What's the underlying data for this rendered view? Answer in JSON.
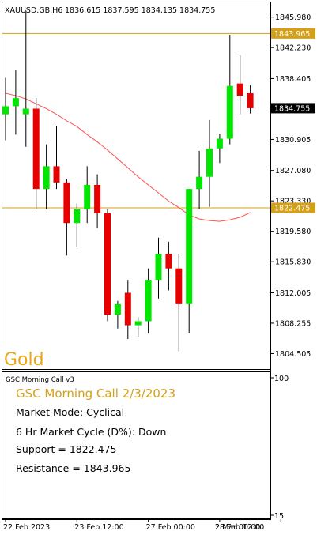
{
  "header": {
    "symbol_info": "XAUUSD.GB,H6",
    "ohlc": "1836.615 1837.595 1834.135 1834.755"
  },
  "watermark": "Gold",
  "indicator": {
    "window_label": "GSC Morning Call v3",
    "title": "GSC Morning Call 2/3/2023",
    "lines": [
      "Market Mode: Cyclical",
      "6 Hr Market Cycle (D%): Down",
      "Support = 1822.475",
      "Resistance = 1843.965"
    ],
    "scale_top": "100",
    "scale_bottom": "15"
  },
  "colors": {
    "bull": "#00e600",
    "bear": "#e60000",
    "ma": "#ff5050",
    "level_line": "#d4a017",
    "indicator_title": "#d4a017",
    "watermark": "#e6a817"
  },
  "chart_data": {
    "type": "candlestick",
    "title": "XAUUSD.GB,H6",
    "ylim": [
      1802.6,
      1847.8
    ],
    "price_ticks": [
      "1845.980",
      "1842.230",
      "1838.405",
      "1834.755",
      "1830.905",
      "1827.080",
      "1823.330",
      "1819.580",
      "1815.830",
      "1812.005",
      "1808.255",
      "1804.505"
    ],
    "time_labels": [
      {
        "label": "22 Feb 2023",
        "index": 0
      },
      {
        "label": "23 Feb 12:00",
        "index": 7
      },
      {
        "label": "27 Feb 00:00",
        "index": 14
      },
      {
        "label": "28 Feb 12:00",
        "index": 21
      },
      {
        "label": "2 Mar 00:00",
        "index": 27
      }
    ],
    "levels": [
      {
        "name": "Resistance",
        "price": 1843.965,
        "label": "1843.965"
      },
      {
        "name": "Support",
        "price": 1822.475,
        "label": "1822.475"
      }
    ],
    "current_price": {
      "price": 1834.755,
      "label": "1834.755"
    },
    "candles": [
      {
        "o": 1834.0,
        "h": 1838.5,
        "l": 1830.8,
        "c": 1835.0
      },
      {
        "o": 1835.0,
        "h": 1839.5,
        "l": 1831.5,
        "c": 1836.0
      },
      {
        "o": 1834.0,
        "h": 1846.8,
        "l": 1830.0,
        "c": 1834.7
      },
      {
        "o": 1834.7,
        "h": 1836.0,
        "l": 1822.3,
        "c": 1824.8
      },
      {
        "o": 1824.8,
        "h": 1830.3,
        "l": 1822.3,
        "c": 1827.6
      },
      {
        "o": 1827.6,
        "h": 1832.6,
        "l": 1824.8,
        "c": 1825.6
      },
      {
        "o": 1825.6,
        "h": 1826.0,
        "l": 1816.6,
        "c": 1820.6
      },
      {
        "o": 1820.6,
        "h": 1823.0,
        "l": 1817.6,
        "c": 1822.3
      },
      {
        "o": 1822.3,
        "h": 1827.6,
        "l": 1820.6,
        "c": 1825.3
      },
      {
        "o": 1825.3,
        "h": 1826.6,
        "l": 1820.0,
        "c": 1821.8
      },
      {
        "o": 1821.8,
        "h": 1822.3,
        "l": 1808.5,
        "c": 1809.3
      },
      {
        "o": 1809.3,
        "h": 1811.0,
        "l": 1807.6,
        "c": 1810.6
      },
      {
        "o": 1812.0,
        "h": 1813.6,
        "l": 1806.3,
        "c": 1808.0
      },
      {
        "o": 1808.0,
        "h": 1809.0,
        "l": 1806.6,
        "c": 1808.5
      },
      {
        "o": 1808.5,
        "h": 1815.0,
        "l": 1807.0,
        "c": 1813.6
      },
      {
        "o": 1813.6,
        "h": 1818.8,
        "l": 1811.3,
        "c": 1816.8
      },
      {
        "o": 1816.8,
        "h": 1818.3,
        "l": 1812.3,
        "c": 1815.0
      },
      {
        "o": 1815.0,
        "h": 1816.8,
        "l": 1804.8,
        "c": 1810.6
      },
      {
        "o": 1810.6,
        "h": 1824.8,
        "l": 1807.0,
        "c": 1824.8
      },
      {
        "o": 1824.8,
        "h": 1829.5,
        "l": 1822.3,
        "c": 1826.3
      },
      {
        "o": 1826.3,
        "h": 1833.3,
        "l": 1822.6,
        "c": 1829.8
      },
      {
        "o": 1829.8,
        "h": 1831.6,
        "l": 1828.0,
        "c": 1831.0
      },
      {
        "o": 1831.0,
        "h": 1843.8,
        "l": 1830.3,
        "c": 1837.5
      },
      {
        "o": 1837.8,
        "h": 1841.3,
        "l": 1834.0,
        "c": 1836.3
      },
      {
        "o": 1836.6,
        "h": 1837.6,
        "l": 1834.1,
        "c": 1834.755
      }
    ],
    "ma": [
      1836.6,
      1836.3,
      1835.9,
      1835.3,
      1834.7,
      1834.0,
      1833.2,
      1832.5,
      1831.5,
      1830.6,
      1829.6,
      1828.5,
      1827.4,
      1826.3,
      1825.3,
      1824.3,
      1823.3,
      1822.5,
      1821.6,
      1821.1,
      1820.9,
      1820.8,
      1821.0,
      1821.3,
      1821.9
    ]
  }
}
